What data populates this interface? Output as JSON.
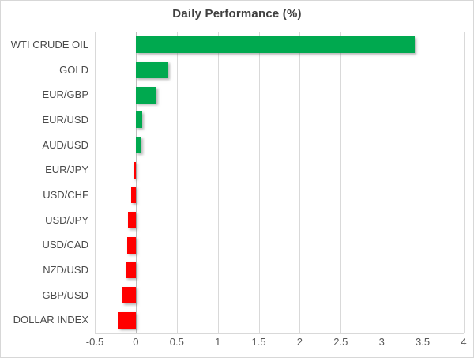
{
  "chart_data": {
    "type": "bar",
    "orientation": "horizontal",
    "title": "Daily Performance (%)",
    "categories": [
      "WTI CRUDE OIL",
      "GOLD",
      "EUR/GBP",
      "EUR/USD",
      "AUD/USD",
      "EUR/JPY",
      "USD/CHF",
      "USD/JPY",
      "USD/CAD",
      "NZD/USD",
      "GBP/USD",
      "DOLLAR INDEX"
    ],
    "values": [
      3.4,
      0.4,
      0.25,
      0.08,
      0.07,
      -0.03,
      -0.06,
      -0.1,
      -0.11,
      -0.12,
      -0.16,
      -0.21
    ],
    "xlim": [
      -0.5,
      4
    ],
    "x_tick_values": [
      -0.5,
      0,
      0.5,
      1,
      1.5,
      2,
      2.5,
      3,
      3.5,
      4
    ],
    "x_tick_labels": [
      "-0.5",
      "0",
      "0.5",
      "1",
      "1.5",
      "2",
      "2.5",
      "3",
      "3.5",
      "4"
    ],
    "grid": "vertical",
    "legend": "none",
    "colors": {
      "positive": "#00a94f",
      "negative": "#ff0000",
      "gridline": "#d9d9d9",
      "zero_axis": "#bfbfbf",
      "title_text": "#404040",
      "label_text": "#4a4a4a",
      "tick_text": "#595959"
    }
  }
}
